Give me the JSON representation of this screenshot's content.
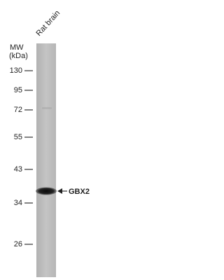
{
  "lane_label": "Rat brain",
  "axis": {
    "title": "MW",
    "unit": "(kDa)",
    "markers": [
      "130",
      "95",
      "72",
      "55",
      "43",
      "34",
      "26"
    ]
  },
  "band": {
    "label": "GBX2"
  }
}
